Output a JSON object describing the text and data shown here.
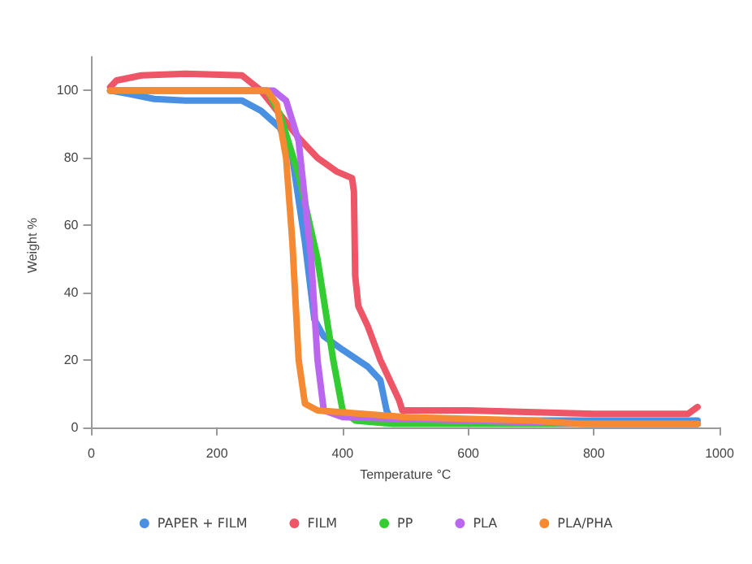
{
  "chart_data": {
    "type": "line",
    "xlabel": "Temperature °C",
    "ylabel": "Weight %",
    "xlim": [
      0,
      1000
    ],
    "xticks": [
      0,
      200,
      400,
      600,
      800,
      1000
    ],
    "ylim": [
      -2,
      110
    ],
    "yticks": [
      0,
      20,
      40,
      60,
      80,
      100
    ],
    "grid": false,
    "legend": "bottom",
    "marker": "none",
    "line_style": "solid",
    "series": [
      {
        "name": "PAPER + FILM",
        "color": "#4a90e2",
        "x": [
          30,
          60,
          100,
          150,
          240,
          270,
          300,
          320,
          340,
          355,
          370,
          400,
          440,
          460,
          470,
          478,
          600,
          965
        ],
        "values": [
          100,
          99,
          97.5,
          97,
          97,
          94,
          89,
          80,
          55,
          32,
          27,
          23,
          18,
          14,
          5,
          2,
          2,
          2
        ]
      },
      {
        "name": "FILM",
        "color": "#ee5566",
        "x": [
          30,
          40,
          80,
          150,
          240,
          270,
          300,
          330,
          360,
          390,
          415,
          418,
          420,
          425,
          440,
          460,
          480,
          490,
          495,
          600,
          800,
          950,
          965
        ],
        "values": [
          101,
          103,
          104.5,
          105,
          104.5,
          100,
          93,
          86,
          80,
          76,
          74,
          70,
          45,
          36,
          30,
          20,
          12,
          8,
          5,
          5,
          4,
          4,
          6
        ]
      },
      {
        "name": "PP",
        "color": "#33cc33",
        "x": [
          30,
          280,
          300,
          330,
          360,
          385,
          400,
          420,
          480,
          965
        ],
        "values": [
          100,
          100,
          93,
          75,
          50,
          20,
          5,
          2,
          1,
          1
        ]
      },
      {
        "name": "PLA",
        "color": "#bb66ee",
        "x": [
          30,
          290,
          310,
          330,
          350,
          360,
          370,
          400,
          600,
          800,
          965
        ],
        "values": [
          100,
          100,
          97,
          85,
          50,
          20,
          5,
          3,
          2,
          1,
          1
        ]
      },
      {
        "name": "PLA/PHA",
        "color": "#f58a32",
        "x": [
          30,
          280,
          295,
          310,
          320,
          330,
          340,
          360,
          500,
          700,
          780,
          965
        ],
        "values": [
          100,
          100,
          96,
          80,
          55,
          20,
          7,
          5,
          3,
          2,
          1,
          1
        ]
      }
    ]
  }
}
